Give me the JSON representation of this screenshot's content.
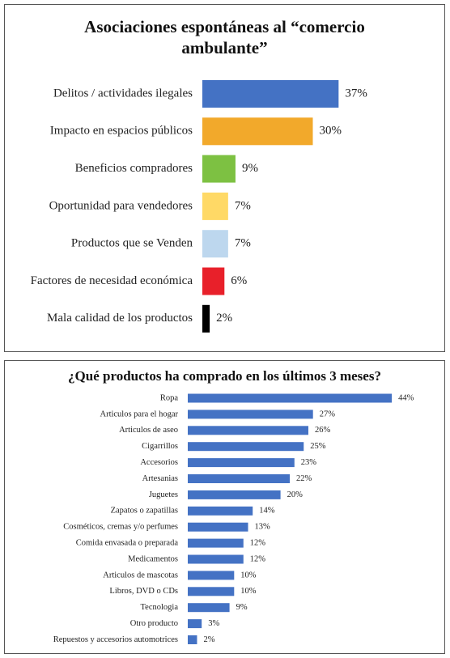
{
  "chart_data": [
    {
      "type": "bar",
      "orientation": "horizontal",
      "title": "Asociaciones espontáneas al “comercio ambulante”",
      "categories": [
        "Delitos / actividades ilegales",
        "Impacto en espacios públicos",
        "Beneficios compradores",
        "Oportunidad para vendedores",
        "Productos que se Venden",
        "Factores de necesidad económica",
        "Mala calidad de los productos"
      ],
      "values": [
        37,
        30,
        9,
        7,
        7,
        6,
        2
      ],
      "value_labels": [
        "37%",
        "30%",
        "9%",
        "7%",
        "7%",
        "6%",
        "2%"
      ],
      "colors": [
        "#4472c4",
        "#f2a92b",
        "#7dc142",
        "#ffd966",
        "#bdd7ee",
        "#e8202a",
        "#000000"
      ]
    },
    {
      "type": "bar",
      "orientation": "horizontal",
      "title": "¿Qué productos ha comprado en los últimos 3 meses?",
      "categories": [
        "Ropa",
        "Articulos para el hogar",
        "Articulos de aseo",
        "Cigarrillos",
        "Accesorios",
        "Artesanias",
        "Juguetes",
        "Zapatos o zapatillas",
        "Cosméticos, cremas y/o perfumes",
        "Comida envasada o preparada",
        "Medicamentos",
        "Articulos de mascotas",
        "Libros, DVD o CDs",
        "Tecnologia",
        "Otro producto",
        "Repuestos y accesorios automotrices"
      ],
      "values": [
        44,
        27,
        26,
        25,
        23,
        22,
        20,
        14,
        13,
        12,
        12,
        10,
        10,
        9,
        3,
        2
      ],
      "value_labels": [
        "44%",
        "27%",
        "26%",
        "25%",
        "23%",
        "22%",
        "20%",
        "14%",
        "13%",
        "12%",
        "12%",
        "10%",
        "10%",
        "9%",
        "3%",
        "2%"
      ],
      "color": "#4472c4"
    }
  ]
}
